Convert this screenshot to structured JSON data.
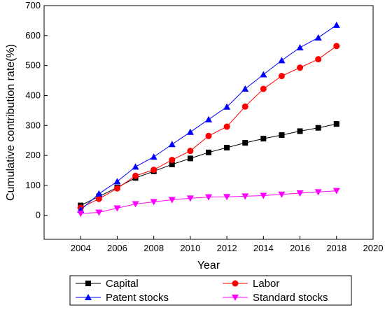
{
  "chart_data": {
    "type": "line",
    "xlabel": "Year",
    "ylabel": "Cumulative contribution rate(%)",
    "xlim": [
      2002,
      2020
    ],
    "ylim": [
      -80,
      700
    ],
    "x_ticks": [
      2004,
      2006,
      2008,
      2010,
      2012,
      2014,
      2016,
      2018,
      2020
    ],
    "y_ticks": [
      0,
      100,
      200,
      300,
      400,
      500,
      600,
      700
    ],
    "x": [
      2004,
      2005,
      2006,
      2007,
      2008,
      2009,
      2010,
      2011,
      2012,
      2013,
      2014,
      2015,
      2016,
      2017,
      2018
    ],
    "series": [
      {
        "name": "Capital",
        "color": "#000000",
        "marker": "square",
        "values": [
          33,
          63,
          93,
          125,
          147,
          170,
          190,
          210,
          226,
          242,
          256,
          268,
          281,
          292,
          305
        ]
      },
      {
        "name": "Labor",
        "color": "#ff0000",
        "marker": "circle",
        "values": [
          25,
          55,
          90,
          132,
          152,
          185,
          215,
          265,
          296,
          363,
          422,
          465,
          493,
          521,
          565
        ]
      },
      {
        "name": "Patent stocks",
        "color": "#0000ff",
        "marker": "triangle-up",
        "values": [
          18,
          72,
          113,
          162,
          195,
          237,
          278,
          320,
          362,
          422,
          470,
          517,
          560,
          593,
          635
        ]
      },
      {
        "name": "Standard stocks",
        "color": "#ff00ff",
        "marker": "triangle-down",
        "values": [
          6,
          10,
          24,
          38,
          45,
          52,
          57,
          61,
          62,
          64,
          66,
          70,
          74,
          78,
          82
        ]
      }
    ],
    "legend_position": "bottom",
    "grid": false
  }
}
